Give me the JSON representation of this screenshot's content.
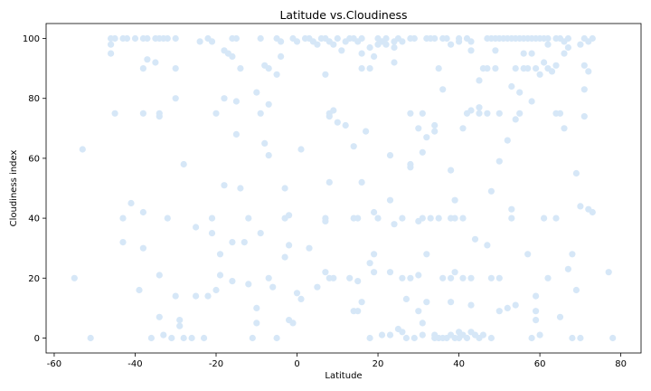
{
  "chart_data": {
    "type": "scatter",
    "title": "Latitude vs.Cloudiness",
    "xlabel": "Latitude",
    "ylabel": "Cloudiness index",
    "xlim": [
      -62,
      85
    ],
    "ylim": [
      -5,
      105
    ],
    "xticks": [
      -60,
      -40,
      -20,
      0,
      20,
      40,
      60,
      80
    ],
    "yticks": [
      0,
      20,
      40,
      60,
      80,
      100
    ],
    "grid": false,
    "marker_color": "#d6e7f7",
    "points": [
      [
        -55,
        20
      ],
      [
        -53,
        63
      ],
      [
        -51,
        0
      ],
      [
        -46,
        100
      ],
      [
        -45,
        100
      ],
      [
        -46,
        98
      ],
      [
        -46,
        95
      ],
      [
        -45,
        75
      ],
      [
        -43,
        100
      ],
      [
        -42,
        100
      ],
      [
        -40,
        100
      ],
      [
        -38,
        100
      ],
      [
        -37,
        100
      ],
      [
        -38,
        90
      ],
      [
        -37,
        93
      ],
      [
        -38,
        75
      ],
      [
        -35,
        100
      ],
      [
        -34,
        100
      ],
      [
        -33,
        100
      ],
      [
        -32,
        100
      ],
      [
        -35,
        92
      ],
      [
        -34,
        75
      ],
      [
        -34,
        74
      ],
      [
        -30,
        100
      ],
      [
        -30,
        90
      ],
      [
        -30,
        80
      ],
      [
        -43,
        40
      ],
      [
        -43,
        32
      ],
      [
        -41,
        45
      ],
      [
        -39,
        16
      ],
      [
        -38,
        42
      ],
      [
        -38,
        30
      ],
      [
        -36,
        0
      ],
      [
        -34,
        21
      ],
      [
        -34,
        7
      ],
      [
        -33,
        1
      ],
      [
        -32,
        40
      ],
      [
        -31,
        0
      ],
      [
        -30,
        14
      ],
      [
        -29,
        6
      ],
      [
        -29,
        4
      ],
      [
        -28,
        58
      ],
      [
        -28,
        0
      ],
      [
        -26,
        0
      ],
      [
        -25,
        37
      ],
      [
        -25,
        14
      ],
      [
        -24,
        99
      ],
      [
        -22,
        100
      ],
      [
        -21,
        99
      ],
      [
        -22,
        14
      ],
      [
        -23,
        0
      ],
      [
        -21,
        40
      ],
      [
        -21,
        35
      ],
      [
        -20,
        16
      ],
      [
        -20,
        75
      ],
      [
        -19,
        28
      ],
      [
        -19,
        21
      ],
      [
        -18,
        96
      ],
      [
        -17,
        95
      ],
      [
        -18,
        80
      ],
      [
        -18,
        51
      ],
      [
        -16,
        100
      ],
      [
        -15,
        100
      ],
      [
        -16,
        94
      ],
      [
        -15,
        79
      ],
      [
        -15,
        68
      ],
      [
        -16,
        32
      ],
      [
        -16,
        19
      ],
      [
        -14,
        50
      ],
      [
        -14,
        90
      ],
      [
        -13,
        32
      ],
      [
        -12,
        18
      ],
      [
        -12,
        40
      ],
      [
        -11,
        0
      ],
      [
        -10,
        10
      ],
      [
        -10,
        5
      ],
      [
        -10,
        82
      ],
      [
        -9,
        100
      ],
      [
        -9,
        75
      ],
      [
        -9,
        35
      ],
      [
        -8,
        65
      ],
      [
        -8,
        91
      ],
      [
        -7,
        90
      ],
      [
        -7,
        78
      ],
      [
        -7,
        61
      ],
      [
        -7,
        20
      ],
      [
        -6,
        17
      ],
      [
        -5,
        100
      ],
      [
        -5,
        88
      ],
      [
        -5,
        0
      ],
      [
        -4,
        99
      ],
      [
        -4,
        94
      ],
      [
        -3,
        50
      ],
      [
        -3,
        40
      ],
      [
        -3,
        27
      ],
      [
        -2,
        31
      ],
      [
        -2,
        41
      ],
      [
        -2,
        6
      ],
      [
        -1,
        100
      ],
      [
        -1,
        5
      ],
      [
        0,
        99
      ],
      [
        0,
        15
      ],
      [
        1,
        63
      ],
      [
        1,
        13
      ],
      [
        2,
        100
      ],
      [
        3,
        100
      ],
      [
        3,
        30
      ],
      [
        4,
        99
      ],
      [
        5,
        98
      ],
      [
        5,
        17
      ],
      [
        6,
        100
      ],
      [
        7,
        100
      ],
      [
        7,
        88
      ],
      [
        7,
        39
      ],
      [
        7,
        40
      ],
      [
        7,
        22
      ],
      [
        8,
        99
      ],
      [
        8,
        74
      ],
      [
        8,
        75
      ],
      [
        8,
        52
      ],
      [
        8,
        20
      ],
      [
        9,
        98
      ],
      [
        9,
        76
      ],
      [
        9,
        20
      ],
      [
        10,
        100
      ],
      [
        10,
        72
      ],
      [
        11,
        96
      ],
      [
        12,
        99
      ],
      [
        12,
        71
      ],
      [
        13,
        100
      ],
      [
        13,
        20
      ],
      [
        14,
        100
      ],
      [
        14,
        64
      ],
      [
        14,
        40
      ],
      [
        14,
        9
      ],
      [
        15,
        99
      ],
      [
        15,
        40
      ],
      [
        15,
        19
      ],
      [
        15,
        9
      ],
      [
        16,
        100
      ],
      [
        16,
        95
      ],
      [
        16,
        90
      ],
      [
        16,
        52
      ],
      [
        16,
        12
      ],
      [
        17,
        69
      ],
      [
        18,
        90
      ],
      [
        18,
        97
      ],
      [
        18,
        25
      ],
      [
        18,
        0
      ],
      [
        19,
        94
      ],
      [
        19,
        42
      ],
      [
        19,
        22
      ],
      [
        19,
        28
      ],
      [
        20,
        100
      ],
      [
        20,
        98
      ],
      [
        20,
        40
      ],
      [
        21,
        99
      ],
      [
        21,
        1
      ],
      [
        22,
        98
      ],
      [
        22,
        100
      ],
      [
        23,
        1
      ],
      [
        23,
        46
      ],
      [
        23,
        61
      ],
      [
        23,
        22
      ],
      [
        24,
        97
      ],
      [
        24,
        99
      ],
      [
        24,
        92
      ],
      [
        24,
        38
      ],
      [
        25,
        100
      ],
      [
        25,
        3
      ],
      [
        26,
        99
      ],
      [
        26,
        2
      ],
      [
        26,
        40
      ],
      [
        26,
        20
      ],
      [
        27,
        13
      ],
      [
        27,
        0
      ],
      [
        28,
        100
      ],
      [
        28,
        75
      ],
      [
        28,
        58
      ],
      [
        28,
        57
      ],
      [
        28,
        20
      ],
      [
        29,
        100
      ],
      [
        29,
        0
      ],
      [
        30,
        70
      ],
      [
        30,
        39
      ],
      [
        30,
        9
      ],
      [
        30,
        21
      ],
      [
        31,
        75
      ],
      [
        31,
        62
      ],
      [
        31,
        40
      ],
      [
        31,
        5
      ],
      [
        31,
        1
      ],
      [
        32,
        100
      ],
      [
        32,
        67
      ],
      [
        32,
        28
      ],
      [
        32,
        12
      ],
      [
        33,
        100
      ],
      [
        33,
        40
      ],
      [
        34,
        100
      ],
      [
        34,
        71
      ],
      [
        34,
        69
      ],
      [
        34,
        1
      ],
      [
        34,
        0
      ],
      [
        35,
        90
      ],
      [
        35,
        0
      ],
      [
        35,
        40
      ],
      [
        36,
        100
      ],
      [
        36,
        83
      ],
      [
        36,
        20
      ],
      [
        36,
        0
      ],
      [
        37,
        100
      ],
      [
        37,
        0
      ],
      [
        38,
        98
      ],
      [
        38,
        56
      ],
      [
        38,
        40
      ],
      [
        38,
        20
      ],
      [
        38,
        12
      ],
      [
        38,
        1
      ],
      [
        39,
        40
      ],
      [
        39,
        46
      ],
      [
        39,
        22
      ],
      [
        39,
        0
      ],
      [
        40,
        100
      ],
      [
        40,
        99
      ],
      [
        40,
        0
      ],
      [
        40,
        2
      ],
      [
        41,
        70
      ],
      [
        41,
        40
      ],
      [
        41,
        20
      ],
      [
        41,
        1
      ],
      [
        42,
        100
      ],
      [
        42,
        75
      ],
      [
        42,
        0
      ],
      [
        43,
        96
      ],
      [
        43,
        99
      ],
      [
        43,
        76
      ],
      [
        43,
        20
      ],
      [
        43,
        11
      ],
      [
        43,
        2
      ],
      [
        44,
        33
      ],
      [
        44,
        1
      ],
      [
        45,
        77
      ],
      [
        45,
        75
      ],
      [
        45,
        86
      ],
      [
        45,
        0
      ],
      [
        46,
        90
      ],
      [
        46,
        1
      ],
      [
        47,
        100
      ],
      [
        47,
        90
      ],
      [
        47,
        75
      ],
      [
        47,
        31
      ],
      [
        48,
        100
      ],
      [
        48,
        49
      ],
      [
        48,
        20
      ],
      [
        48,
        0
      ],
      [
        49,
        100
      ],
      [
        49,
        96
      ],
      [
        49,
        90
      ],
      [
        50,
        100
      ],
      [
        50,
        75
      ],
      [
        50,
        59
      ],
      [
        50,
        20
      ],
      [
        50,
        9
      ],
      [
        51,
        100
      ],
      [
        52,
        100
      ],
      [
        52,
        66
      ],
      [
        52,
        10
      ],
      [
        53,
        100
      ],
      [
        53,
        84
      ],
      [
        53,
        40
      ],
      [
        53,
        43
      ],
      [
        54,
        100
      ],
      [
        54,
        90
      ],
      [
        54,
        73
      ],
      [
        54,
        11
      ],
      [
        55,
        100
      ],
      [
        55,
        75
      ],
      [
        55,
        82
      ],
      [
        56,
        100
      ],
      [
        56,
        95
      ],
      [
        56,
        90
      ],
      [
        57,
        100
      ],
      [
        57,
        90
      ],
      [
        57,
        28
      ],
      [
        58,
        100
      ],
      [
        58,
        95
      ],
      [
        58,
        79
      ],
      [
        58,
        0
      ],
      [
        59,
        100
      ],
      [
        59,
        90
      ],
      [
        59,
        14
      ],
      [
        59,
        9
      ],
      [
        59,
        6
      ],
      [
        60,
        100
      ],
      [
        60,
        88
      ],
      [
        60,
        1
      ],
      [
        61,
        100
      ],
      [
        61,
        92
      ],
      [
        61,
        40
      ],
      [
        62,
        100
      ],
      [
        62,
        98
      ],
      [
        62,
        90
      ],
      [
        62,
        20
      ],
      [
        63,
        89
      ],
      [
        64,
        100
      ],
      [
        64,
        91
      ],
      [
        64,
        75
      ],
      [
        64,
        40
      ],
      [
        65,
        100
      ],
      [
        65,
        75
      ],
      [
        65,
        7
      ],
      [
        66,
        95
      ],
      [
        66,
        99
      ],
      [
        66,
        70
      ],
      [
        67,
        100
      ],
      [
        67,
        97
      ],
      [
        67,
        23
      ],
      [
        68,
        28
      ],
      [
        68,
        0
      ],
      [
        69,
        55
      ],
      [
        69,
        16
      ],
      [
        70,
        98
      ],
      [
        70,
        44
      ],
      [
        70,
        0
      ],
      [
        71,
        100
      ],
      [
        71,
        91
      ],
      [
        71,
        74
      ],
      [
        71,
        83
      ],
      [
        72,
        99
      ],
      [
        72,
        89
      ],
      [
        72,
        43
      ],
      [
        73,
        42
      ],
      [
        73,
        100
      ],
      [
        77,
        22
      ],
      [
        78,
        0
      ]
    ]
  }
}
